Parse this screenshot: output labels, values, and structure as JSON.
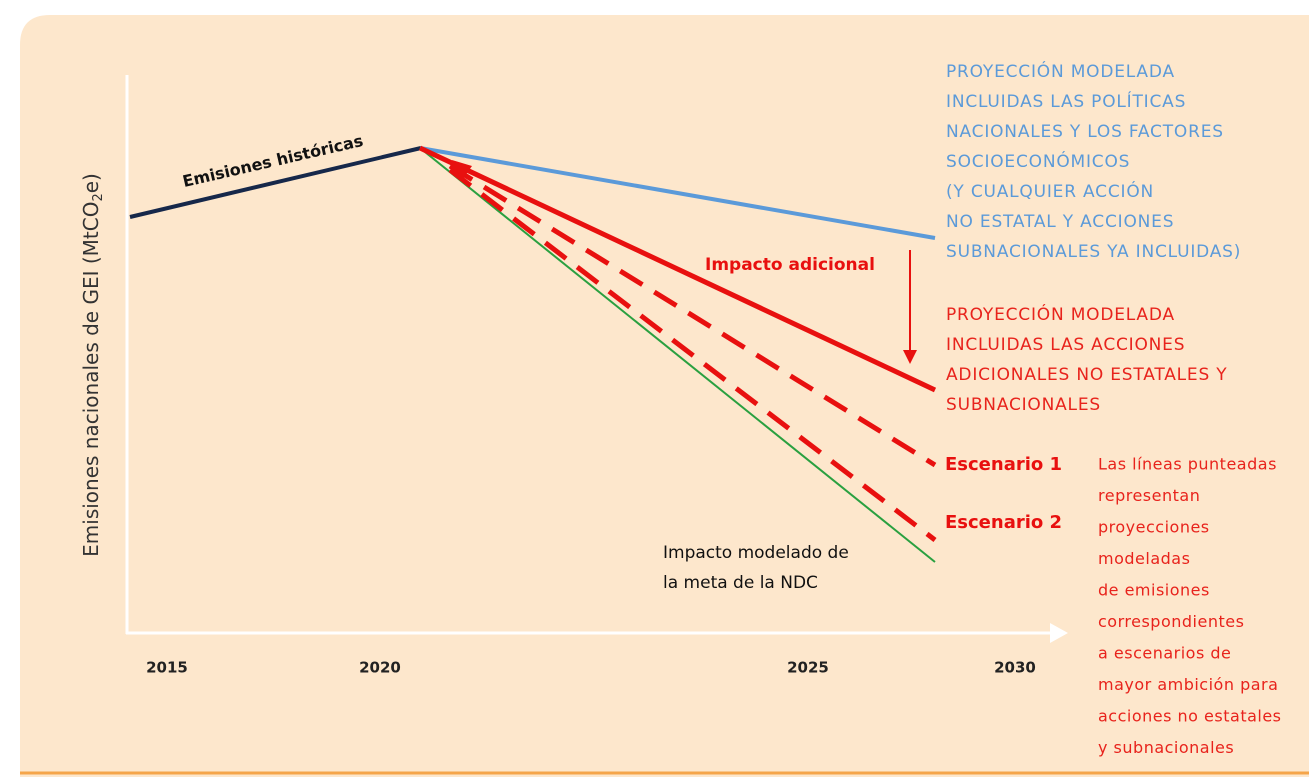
{
  "y_axis_label": {
    "main": "Emisiones nacionales de GEI (MtCO",
    "subscript": "2",
    "end": "e)"
  },
  "x_labels": [
    "2015",
    "2020",
    "2025",
    "2030"
  ],
  "historic_label": "Emisiones históricas",
  "blue_projection": [
    "PROYECCIÓN MODELADA",
    "INCLUIDAS LAS POLÍTICAS",
    "NACIONALES Y LOS FACTORES",
    "SOCIOECONÓMICOS",
    "(Y CUALQUIER ACCIÓN",
    "NO ESTATAL Y ACCIONES",
    "SUBNACIONALES YA INCLUIDAS)"
  ],
  "red_projection": [
    "PROYECCIÓN MODELADA",
    "INCLUIDAS LAS ACCIONES",
    "ADICIONALES NO  ESTATALES Y",
    "SUBNACIONALES"
  ],
  "impact_label": "Impacto adicional",
  "scenarios": [
    "Escenario 1",
    "Escenario 2"
  ],
  "note": [
    "Las líneas punteadas",
    "representan",
    "proyecciones",
    "modeladas",
    "de emisiones",
    "correspondientes",
    "a escenarios de",
    "mayor ambición para",
    "acciones no estatales",
    "y subnacionales"
  ],
  "ndc_label": [
    "Impacto modelado de",
    "la meta de la NDC"
  ]
}
